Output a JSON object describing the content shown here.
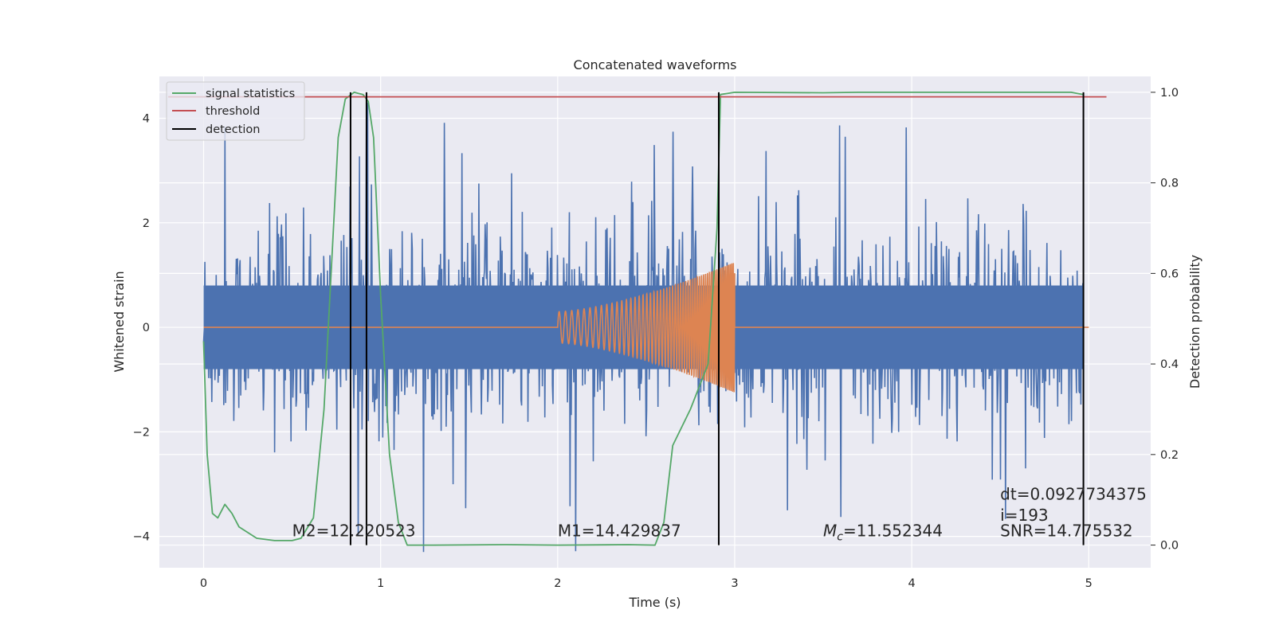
{
  "chart_data": {
    "type": "line",
    "title": "Concatenated waveforms",
    "xlabel": "Time (s)",
    "ylabel": "Whitened strain",
    "ylabel_right": "Detection probability",
    "xlim": [
      -0.25,
      5.35
    ],
    "ylim": [
      -4.6,
      4.8
    ],
    "ylim_right": [
      -0.05,
      1.035
    ],
    "xticks": [
      0,
      1,
      2,
      3,
      4,
      5
    ],
    "xtick_labels": [
      "0",
      "1",
      "2",
      "3",
      "4",
      "5"
    ],
    "yticks": [
      -4,
      -2,
      0,
      2,
      4
    ],
    "ytick_labels": [
      "−4",
      "−2",
      "0",
      "2",
      "4"
    ],
    "yticks_right": [
      0.0,
      0.2,
      0.4,
      0.6,
      0.8,
      1.0
    ],
    "ytick_labels_right": [
      "0.0",
      "0.2",
      "0.4",
      "0.6",
      "0.8",
      "1.0"
    ],
    "grid": true,
    "legend_position": "top-left",
    "colors": {
      "background": "#eaeaf2",
      "grid": "#ffffff",
      "noise": "#4c72b0",
      "template": "#dd8452",
      "signal_statistics": "#55a868",
      "threshold": "#c44e52",
      "detection": "#000000"
    },
    "legend": [
      {
        "label": "signal statistics",
        "color": "#55a868"
      },
      {
        "label": "threshold",
        "color": "#c44e52"
      },
      {
        "label": "detection",
        "color": "#000000"
      }
    ],
    "series": [
      {
        "name": "signal statistics",
        "axis": "right",
        "x": [
          0.0,
          0.02,
          0.05,
          0.08,
          0.12,
          0.16,
          0.2,
          0.3,
          0.4,
          0.5,
          0.55,
          0.62,
          0.68,
          0.72,
          0.76,
          0.8,
          0.85,
          0.9,
          0.93,
          0.96,
          1.0,
          1.05,
          1.1,
          1.15,
          1.3,
          1.7,
          2.0,
          2.4,
          2.55,
          2.6,
          2.65,
          2.75,
          2.85,
          2.9,
          2.92,
          3.0,
          3.5,
          3.7,
          4.0,
          4.9,
          4.97
        ],
        "y": [
          0.45,
          0.2,
          0.07,
          0.06,
          0.09,
          0.07,
          0.04,
          0.015,
          0.01,
          0.01,
          0.015,
          0.06,
          0.3,
          0.6,
          0.9,
          0.985,
          1.0,
          0.995,
          0.98,
          0.9,
          0.55,
          0.2,
          0.05,
          0.0,
          0.0,
          0.001,
          0.0,
          0.001,
          0.0,
          0.05,
          0.22,
          0.3,
          0.4,
          0.7,
          0.995,
          1.0,
          0.999,
          1.0,
          1.0,
          1.0,
          0.995
        ]
      },
      {
        "name": "threshold",
        "axis": "right",
        "x": [
          -0.2,
          5.1
        ],
        "y": [
          0.99,
          0.99
        ]
      }
    ],
    "noise": {
      "axis": "left",
      "x_range": [
        0,
        4.97
      ],
      "core_amplitude": 0.8,
      "typical_peak": 2.0,
      "max_abs": 4.3
    },
    "template": {
      "axis": "left",
      "x_range": [
        0,
        5.0
      ],
      "chirp_start": 2.0,
      "chirp_end": 3.0,
      "start_amplitude": 0.3,
      "end_amplitude": 1.25
    },
    "detections_x": [
      0.83,
      0.92,
      2.91,
      4.97
    ],
    "annotations": [
      {
        "text": "M2=12.220523",
        "x": 0.5,
        "y": -4.0,
        "axis": "left"
      },
      {
        "text": "M1=14.429837",
        "x": 2.0,
        "y": -4.0,
        "axis": "left"
      },
      {
        "text": "=11.552344",
        "math_prefix": "M",
        "math_sub": "c",
        "x": 3.5,
        "y": -4.0,
        "axis": "left"
      },
      {
        "text": "dt=0.0927734375",
        "x": 4.5,
        "y": -3.3,
        "axis": "left"
      },
      {
        "text": " i=193",
        "x": 4.5,
        "y": -3.7,
        "axis": "left"
      },
      {
        "text": "SNR=14.775532",
        "x": 4.5,
        "y": -4.0,
        "axis": "left"
      }
    ]
  }
}
